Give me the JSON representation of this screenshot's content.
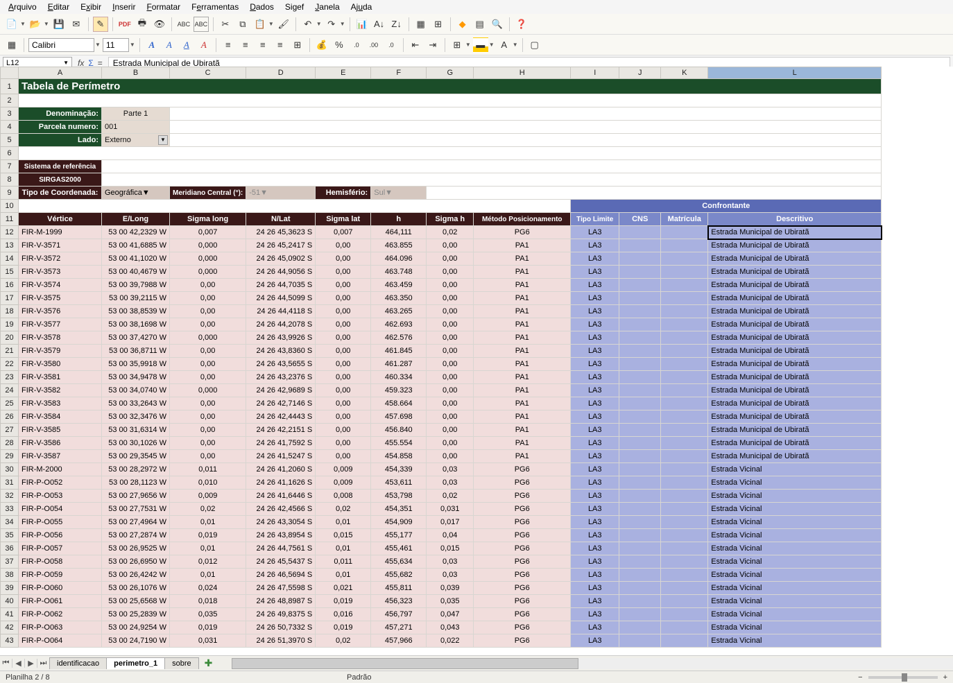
{
  "menu": [
    "Arquivo",
    "Editar",
    "Exibir",
    "Inserir",
    "Formatar",
    "Ferramentas",
    "Dados",
    "Sigef",
    "Janela",
    "Ajuda"
  ],
  "menu_underline_idx": [
    0,
    0,
    1,
    0,
    0,
    1,
    0,
    -1,
    0,
    2
  ],
  "font_name": "Calibri",
  "font_size": "11",
  "namebox": "L12",
  "formula": "Estrada Municipal de Ubiratã",
  "title": "Tabela de Perímetro",
  "labels": {
    "denom": "Denominação:",
    "denom_v": "Parte 1",
    "parcela": "Parcela numero:",
    "parcela_v": "001",
    "lado": "Lado:",
    "lado_v": "Externo",
    "ref1": "Sistema de referência",
    "ref2": "SIRGAS2000",
    "tipocoord": "Tipo de Coordenada:",
    "tipocoord_v": "Geográfica",
    "meridiano": "Meridiano Central (°):",
    "meridiano_v": "-51",
    "hemis": "Hemisfério:",
    "hemis_v": "Sul"
  },
  "col_letters": [
    "A",
    "B",
    "C",
    "D",
    "E",
    "F",
    "G",
    "H",
    "I",
    "J",
    "K",
    "L"
  ],
  "headers": [
    "Vértice",
    "E/Long",
    "Sigma long",
    "N/Lat",
    "Sigma lat",
    "h",
    "Sigma h",
    "Método Posicionamento",
    "Tipo Limite",
    "CNS",
    "Matrícula",
    "Descritivo"
  ],
  "confrontante": "Confrontante",
  "rows": [
    {
      "n": 12,
      "v": "FIR-M-1999",
      "e": "53 00 42,2329 W",
      "sl": "0,007",
      "nl": "24 26 45,3623 S",
      "slat": "0,007",
      "h": "464,111",
      "sh": "0,02",
      "m": "PG6",
      "tl": "LA3",
      "d": "Estrada Municipal de Ubiratã"
    },
    {
      "n": 13,
      "v": "FIR-V-3571",
      "e": "53 00 41,6885 W",
      "sl": "0,000",
      "nl": "24 26 45,2417 S",
      "slat": "0,00",
      "h": "463.855",
      "sh": "0,00",
      "m": "PA1",
      "tl": "LA3",
      "d": "Estrada Municipal de Ubiratã"
    },
    {
      "n": 14,
      "v": "FIR-V-3572",
      "e": "53 00 41,1020 W",
      "sl": "0,000",
      "nl": "24 26 45,0902 S",
      "slat": "0,00",
      "h": "464.096",
      "sh": "0,00",
      "m": "PA1",
      "tl": "LA3",
      "d": "Estrada Municipal de Ubiratã"
    },
    {
      "n": 15,
      "v": "FIR-V-3573",
      "e": "53 00 40,4679 W",
      "sl": "0,000",
      "nl": "24 26 44,9056 S",
      "slat": "0,00",
      "h": "463.748",
      "sh": "0,00",
      "m": "PA1",
      "tl": "LA3",
      "d": "Estrada Municipal de Ubiratã"
    },
    {
      "n": 16,
      "v": "FIR-V-3574",
      "e": "53 00 39,7988 W",
      "sl": "0,00",
      "nl": "24 26 44,7035 S",
      "slat": "0,00",
      "h": "463.459",
      "sh": "0,00",
      "m": "PA1",
      "tl": "LA3",
      "d": "Estrada Municipal de Ubiratã"
    },
    {
      "n": 17,
      "v": "FIR-V-3575",
      "e": "53 00 39,2115 W",
      "sl": "0,00",
      "nl": "24 26 44,5099 S",
      "slat": "0,00",
      "h": "463.350",
      "sh": "0,00",
      "m": "PA1",
      "tl": "LA3",
      "d": "Estrada Municipal de Ubiratã"
    },
    {
      "n": 18,
      "v": "FIR-V-3576",
      "e": "53 00 38,8539 W",
      "sl": "0,00",
      "nl": "24 26 44,4118 S",
      "slat": "0,00",
      "h": "463.265",
      "sh": "0,00",
      "m": "PA1",
      "tl": "LA3",
      "d": "Estrada Municipal de Ubiratã"
    },
    {
      "n": 19,
      "v": "FIR-V-3577",
      "e": "53 00 38,1698 W",
      "sl": "0,00",
      "nl": "24 26 44,2078 S",
      "slat": "0,00",
      "h": "462.693",
      "sh": "0,00",
      "m": "PA1",
      "tl": "LA3",
      "d": "Estrada Municipal de Ubiratã"
    },
    {
      "n": 20,
      "v": "FIR-V-3578",
      "e": "53 00 37,4270 W",
      "sl": "0,000",
      "nl": "24 26 43,9926 S",
      "slat": "0,00",
      "h": "462.576",
      "sh": "0,00",
      "m": "PA1",
      "tl": "LA3",
      "d": "Estrada Municipal de Ubiratã"
    },
    {
      "n": 21,
      "v": "FIR-V-3579",
      "e": "53 00 36,8711 W",
      "sl": "0,00",
      "nl": "24 26 43,8360 S",
      "slat": "0,00",
      "h": "461.845",
      "sh": "0,00",
      "m": "PA1",
      "tl": "LA3",
      "d": "Estrada Municipal de Ubiratã"
    },
    {
      "n": 22,
      "v": "FIR-V-3580",
      "e": "53 00 35,9918 W",
      "sl": "0,00",
      "nl": "24 26 43,5655 S",
      "slat": "0,00",
      "h": "461.287",
      "sh": "0,00",
      "m": "PA1",
      "tl": "LA3",
      "d": "Estrada Municipal de Ubiratã"
    },
    {
      "n": 23,
      "v": "FIR-V-3581",
      "e": "53 00 34,9478 W",
      "sl": "0,00",
      "nl": "24 26 43,2376 S",
      "slat": "0,00",
      "h": "460.334",
      "sh": "0,00",
      "m": "PA1",
      "tl": "LA3",
      "d": "Estrada Municipal de Ubiratã"
    },
    {
      "n": 24,
      "v": "FIR-V-3582",
      "e": "53 00 34,0740 W",
      "sl": "0,000",
      "nl": "24 26 42,9689 S",
      "slat": "0,00",
      "h": "459.323",
      "sh": "0,00",
      "m": "PA1",
      "tl": "LA3",
      "d": "Estrada Municipal de Ubiratã"
    },
    {
      "n": 25,
      "v": "FIR-V-3583",
      "e": "53 00 33,2643 W",
      "sl": "0,00",
      "nl": "24 26 42,7146 S",
      "slat": "0,00",
      "h": "458.664",
      "sh": "0,00",
      "m": "PA1",
      "tl": "LA3",
      "d": "Estrada Municipal de Ubiratã"
    },
    {
      "n": 26,
      "v": "FIR-V-3584",
      "e": "53 00 32,3476 W",
      "sl": "0,00",
      "nl": "24 26 42,4443 S",
      "slat": "0,00",
      "h": "457.698",
      "sh": "0,00",
      "m": "PA1",
      "tl": "LA3",
      "d": "Estrada Municipal de Ubiratã"
    },
    {
      "n": 27,
      "v": "FIR-V-3585",
      "e": "53 00 31,6314 W",
      "sl": "0,00",
      "nl": "24 26 42,2151 S",
      "slat": "0,00",
      "h": "456.840",
      "sh": "0,00",
      "m": "PA1",
      "tl": "LA3",
      "d": "Estrada Municipal de Ubiratã"
    },
    {
      "n": 28,
      "v": "FIR-V-3586",
      "e": "53 00 30,1026 W",
      "sl": "0,00",
      "nl": "24 26 41,7592 S",
      "slat": "0,00",
      "h": "455.554",
      "sh": "0,00",
      "m": "PA1",
      "tl": "LA3",
      "d": "Estrada Municipal de Ubiratã"
    },
    {
      "n": 29,
      "v": "FIR-V-3587",
      "e": "53 00 29,3545 W",
      "sl": "0,00",
      "nl": "24 26 41,5247 S",
      "slat": "0,00",
      "h": "454.858",
      "sh": "0,00",
      "m": "PA1",
      "tl": "LA3",
      "d": "Estrada Municipal de Ubiratã"
    },
    {
      "n": 30,
      "v": "FIR-M-2000",
      "e": "53 00 28,2972 W",
      "sl": "0,011",
      "nl": "24 26 41,2060 S",
      "slat": "0,009",
      "h": "454,339",
      "sh": "0,03",
      "m": "PG6",
      "tl": "LA3",
      "d": "Estrada Vicinal"
    },
    {
      "n": 31,
      "v": "FIR-P-O052",
      "e": "53 00 28,1123 W",
      "sl": "0,010",
      "nl": "24 26 41,1626 S",
      "slat": "0,009",
      "h": "453,611",
      "sh": "0,03",
      "m": "PG6",
      "tl": "LA3",
      "d": "Estrada Vicinal"
    },
    {
      "n": 32,
      "v": "FIR-P-O053",
      "e": "53 00 27,9656 W",
      "sl": "0,009",
      "nl": "24 26 41,6446 S",
      "slat": "0,008",
      "h": "453,798",
      "sh": "0,02",
      "m": "PG6",
      "tl": "LA3",
      "d": "Estrada Vicinal"
    },
    {
      "n": 33,
      "v": "FIR-P-O054",
      "e": "53 00 27,7531 W",
      "sl": "0,02",
      "nl": "24 26 42,4566 S",
      "slat": "0,02",
      "h": "454,351",
      "sh": "0,031",
      "m": "PG6",
      "tl": "LA3",
      "d": "Estrada Vicinal"
    },
    {
      "n": 34,
      "v": "FIR-P-O055",
      "e": "53 00 27,4964 W",
      "sl": "0,01",
      "nl": "24 26 43,3054 S",
      "slat": "0,01",
      "h": "454,909",
      "sh": "0,017",
      "m": "PG6",
      "tl": "LA3",
      "d": "Estrada Vicinal"
    },
    {
      "n": 35,
      "v": "FIR-P-O056",
      "e": "53 00 27,2874 W",
      "sl": "0,019",
      "nl": "24 26 43,8954 S",
      "slat": "0,015",
      "h": "455,177",
      "sh": "0,04",
      "m": "PG6",
      "tl": "LA3",
      "d": "Estrada Vicinal"
    },
    {
      "n": 36,
      "v": "FIR-P-O057",
      "e": "53 00 26,9525 W",
      "sl": "0,01",
      "nl": "24 26 44,7561 S",
      "slat": "0,01",
      "h": "455,461",
      "sh": "0,015",
      "m": "PG6",
      "tl": "LA3",
      "d": "Estrada Vicinal"
    },
    {
      "n": 37,
      "v": "FIR-P-O058",
      "e": "53 00 26,6950 W",
      "sl": "0,012",
      "nl": "24 26 45,5437 S",
      "slat": "0,011",
      "h": "455,634",
      "sh": "0,03",
      "m": "PG6",
      "tl": "LA3",
      "d": "Estrada Vicinal"
    },
    {
      "n": 38,
      "v": "FIR-P-O059",
      "e": "53 00 26,4242 W",
      "sl": "0,01",
      "nl": "24 26 46,5694 S",
      "slat": "0,01",
      "h": "455,682",
      "sh": "0,03",
      "m": "PG6",
      "tl": "LA3",
      "d": "Estrada Vicinal"
    },
    {
      "n": 39,
      "v": "FIR-P-O060",
      "e": "53 00 26,1076 W",
      "sl": "0,024",
      "nl": "24 26 47,5598 S",
      "slat": "0,021",
      "h": "455,811",
      "sh": "0,039",
      "m": "PG6",
      "tl": "LA3",
      "d": "Estrada Vicinal"
    },
    {
      "n": 40,
      "v": "FIR-P-O061",
      "e": "53 00 25,6568 W",
      "sl": "0,018",
      "nl": "24 26 48,8987 S",
      "slat": "0,019",
      "h": "456,323",
      "sh": "0,035",
      "m": "PG6",
      "tl": "LA3",
      "d": "Estrada Vicinal"
    },
    {
      "n": 41,
      "v": "FIR-P-O062",
      "e": "53 00 25,2839 W",
      "sl": "0,035",
      "nl": "24 26 49,8375 S",
      "slat": "0,016",
      "h": "456,797",
      "sh": "0,047",
      "m": "PG6",
      "tl": "LA3",
      "d": "Estrada Vicinal"
    },
    {
      "n": 42,
      "v": "FIR-P-O063",
      "e": "53 00 24,9254 W",
      "sl": "0,019",
      "nl": "24 26 50,7332 S",
      "slat": "0,019",
      "h": "457,271",
      "sh": "0,043",
      "m": "PG6",
      "tl": "LA3",
      "d": "Estrada Vicinal"
    },
    {
      "n": 43,
      "v": "FIR-P-O064",
      "e": "53 00 24,7190 W",
      "sl": "0,031",
      "nl": "24 26 51,3970 S",
      "slat": "0,02",
      "h": "457,966",
      "sh": "0,022",
      "m": "PG6",
      "tl": "LA3",
      "d": "Estrada Vicinal"
    }
  ],
  "tabs": [
    "identificacao",
    "perimetro_1",
    "sobre"
  ],
  "active_tab": 1,
  "status_left": "Planilha 2 / 8",
  "status_mid": "Padrão"
}
